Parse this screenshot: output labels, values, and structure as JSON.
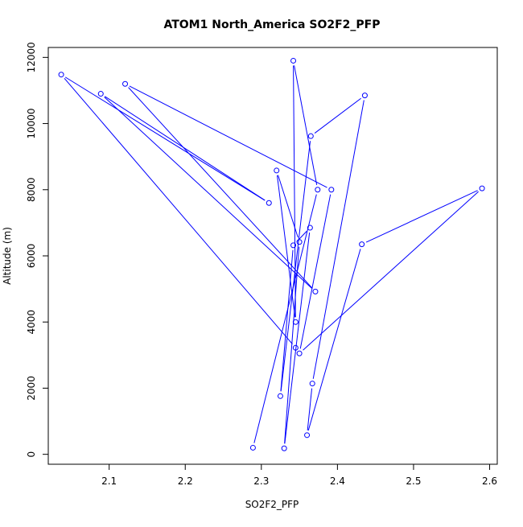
{
  "chart_data": {
    "type": "line",
    "title": "ATOM1 North_America SO2F2_PFP",
    "xlabel": "SO2F2_PFP",
    "ylabel": "Altitude (m)",
    "xlim": [
      2.02,
      2.61
    ],
    "ylim": [
      -300,
      12300
    ],
    "x_ticks": [
      {
        "value": 2.1,
        "label": "2.1"
      },
      {
        "value": 2.2,
        "label": "2.2"
      },
      {
        "value": 2.3,
        "label": "2.3"
      },
      {
        "value": 2.4,
        "label": "2.4"
      },
      {
        "value": 2.5,
        "label": "2.5"
      },
      {
        "value": 2.6,
        "label": "2.6"
      }
    ],
    "y_ticks": [
      {
        "value": 0,
        "label": "0"
      },
      {
        "value": 2000,
        "label": "2000"
      },
      {
        "value": 4000,
        "label": "4000"
      },
      {
        "value": 6000,
        "label": "6000"
      },
      {
        "value": 8000,
        "label": "8000"
      },
      {
        "value": 10000,
        "label": "10000"
      },
      {
        "value": 12000,
        "label": "12000"
      }
    ],
    "grid": false,
    "series": [
      {
        "color": "#0000ff",
        "marker": "open-circle",
        "points": [
          {
            "x": 2.289,
            "y": 200
          },
          {
            "x": 2.374,
            "y": 8000
          },
          {
            "x": 2.342,
            "y": 11900
          },
          {
            "x": 2.345,
            "y": 4000
          },
          {
            "x": 2.32,
            "y": 8580
          },
          {
            "x": 2.35,
            "y": 6420
          },
          {
            "x": 2.33,
            "y": 180
          },
          {
            "x": 2.364,
            "y": 6850
          },
          {
            "x": 2.342,
            "y": 6320
          },
          {
            "x": 2.325,
            "y": 1760
          },
          {
            "x": 2.365,
            "y": 9620
          },
          {
            "x": 2.436,
            "y": 10850
          },
          {
            "x": 2.367,
            "y": 2140
          },
          {
            "x": 2.36,
            "y": 580
          },
          {
            "x": 2.432,
            "y": 6350
          },
          {
            "x": 2.59,
            "y": 8040
          },
          {
            "x": 2.35,
            "y": 3050
          },
          {
            "x": 2.392,
            "y": 8000
          },
          {
            "x": 2.121,
            "y": 11200
          },
          {
            "x": 2.371,
            "y": 4920
          },
          {
            "x": 2.089,
            "y": 10900
          },
          {
            "x": 2.31,
            "y": 7600
          },
          {
            "x": 2.037,
            "y": 11480
          },
          {
            "x": 2.345,
            "y": 3220
          }
        ]
      }
    ]
  }
}
